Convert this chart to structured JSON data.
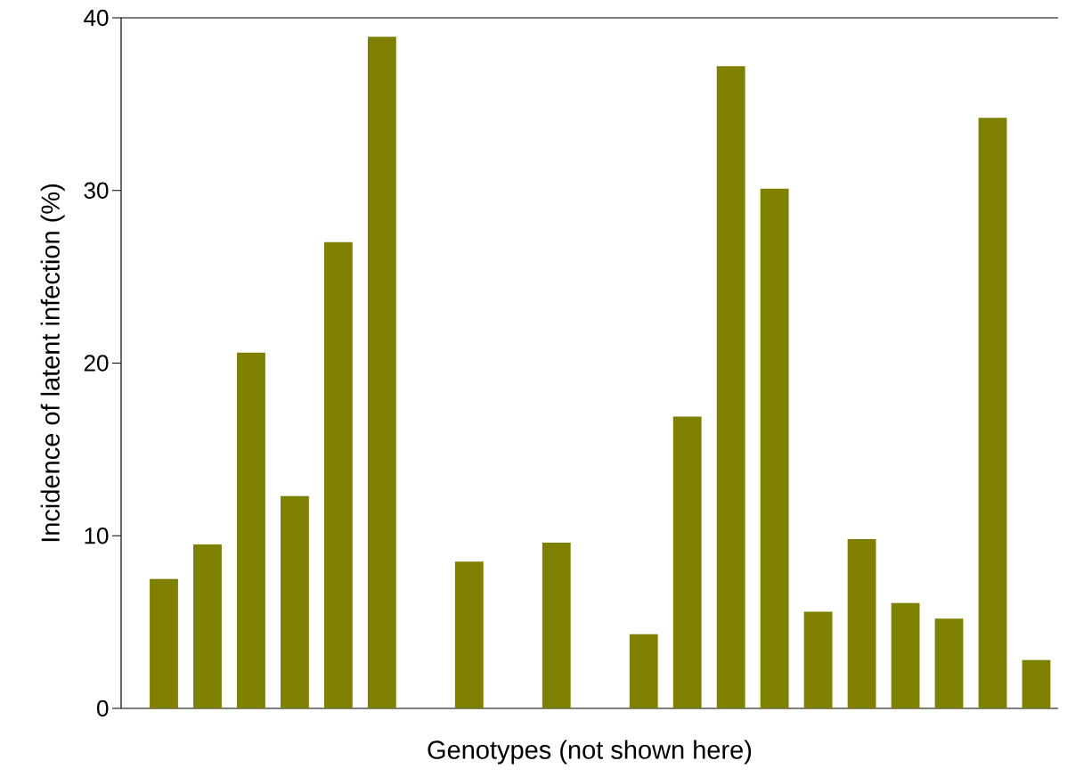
{
  "chart_data": {
    "type": "bar",
    "xlabel": "Genotypes (not shown here)",
    "ylabel": "Incidence of latent infection (%)",
    "categories": [
      null,
      null,
      null,
      null,
      null,
      null,
      null,
      null,
      null,
      null,
      null,
      null,
      null,
      null,
      null,
      null,
      null,
      null,
      null,
      null,
      null
    ],
    "values": [
      7.5,
      9.5,
      20.6,
      12.3,
      27.0,
      38.9,
      null,
      8.5,
      null,
      9.6,
      null,
      4.3,
      16.9,
      37.2,
      30.1,
      5.6,
      9.8,
      6.1,
      5.2,
      34.2,
      2.8
    ],
    "color": "#808000",
    "ylim": [
      0,
      40
    ],
    "yticks": [
      0,
      10,
      20,
      30,
      40
    ],
    "grid": false
  }
}
